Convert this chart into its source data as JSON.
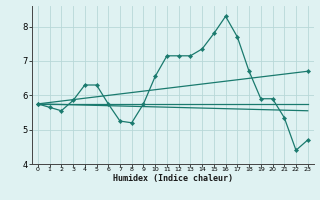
{
  "xlabel": "Humidex (Indice chaleur)",
  "bg_color": "#dff2f2",
  "grid_color": "#b8d8d8",
  "line_color": "#1a7a6e",
  "xlim": [
    -0.5,
    23.5
  ],
  "ylim": [
    4.0,
    8.6
  ],
  "yticks": [
    4,
    5,
    6,
    7,
    8
  ],
  "xticks": [
    0,
    1,
    2,
    3,
    4,
    5,
    6,
    7,
    8,
    9,
    10,
    11,
    12,
    13,
    14,
    15,
    16,
    17,
    18,
    19,
    20,
    21,
    22,
    23
  ],
  "series": [
    {
      "x": [
        0,
        1,
        2,
        3,
        4,
        5,
        6,
        7,
        8,
        9,
        10,
        11,
        12,
        13,
        14,
        15,
        16,
        17,
        18,
        19,
        20,
        21,
        22,
        23
      ],
      "y": [
        5.75,
        5.65,
        5.55,
        5.85,
        6.3,
        6.3,
        5.75,
        5.25,
        5.2,
        5.75,
        6.55,
        7.15,
        7.15,
        7.15,
        7.35,
        7.8,
        8.3,
        7.7,
        6.7,
        5.9,
        5.9,
        5.35,
        4.4,
        4.7
      ],
      "with_markers": true
    },
    {
      "x": [
        0,
        23
      ],
      "y": [
        5.75,
        6.7
      ],
      "with_markers": true
    },
    {
      "x": [
        0,
        23
      ],
      "y": [
        5.75,
        5.55
      ],
      "with_markers": false
    },
    {
      "x": [
        0,
        23
      ],
      "y": [
        5.75,
        5.75
      ],
      "with_markers": false
    }
  ]
}
